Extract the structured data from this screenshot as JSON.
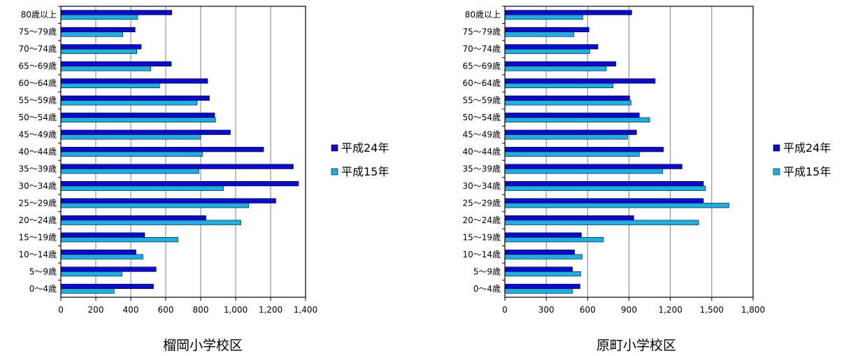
{
  "colors": {
    "series1": "#0a0ad2",
    "series2": "#1ab0e6",
    "grid": "#808080",
    "axis": "#000000"
  },
  "chart_data": [
    {
      "type": "bar",
      "orientation": "horizontal",
      "title": "榴岡小学校区",
      "categories": [
        "80歳以上",
        "75～79歳",
        "70～74歳",
        "65～69歳",
        "60～64歳",
        "55～59歳",
        "50～54歳",
        "45～49歳",
        "40～44歳",
        "35～39歳",
        "30～34歳",
        "25～29歳",
        "20～24歳",
        "15～19歳",
        "10～14歳",
        "5～9歳",
        "0～4歳"
      ],
      "series": [
        {
          "name": "平成24年",
          "values": [
            635,
            425,
            460,
            632,
            840,
            850,
            880,
            970,
            1160,
            1330,
            1360,
            1230,
            830,
            480,
            430,
            545,
            530
          ]
        },
        {
          "name": "平成15年",
          "values": [
            440,
            355,
            435,
            515,
            565,
            780,
            885,
            800,
            810,
            790,
            930,
            1075,
            1030,
            670,
            470,
            350,
            305
          ]
        }
      ],
      "xlim": [
        0,
        1400
      ],
      "xticks": [
        "0",
        "200",
        "400",
        "600",
        "800",
        "1,000",
        "1,200",
        "1,400"
      ],
      "grid": true,
      "legend": "right"
    },
    {
      "type": "bar",
      "orientation": "horizontal",
      "title": "原町小学校区",
      "categories": [
        "80歳以上",
        "75～79歳",
        "70～74歳",
        "65～69歳",
        "60～64歳",
        "55～59歳",
        "50～54歳",
        "45～49歳",
        "40～44歳",
        "35～39歳",
        "30～34歳",
        "25～29歳",
        "20～24歳",
        "15～19歳",
        "10～14歳",
        "5～9歳",
        "0～4歳"
      ],
      "series": [
        {
          "name": "平成24年",
          "values": [
            920,
            610,
            675,
            805,
            1090,
            905,
            975,
            955,
            1150,
            1285,
            1440,
            1440,
            935,
            555,
            505,
            490,
            545
          ]
        },
        {
          "name": "平成15年",
          "values": [
            565,
            500,
            615,
            735,
            785,
            915,
            1050,
            890,
            975,
            1145,
            1455,
            1625,
            1405,
            715,
            560,
            550,
            490
          ]
        }
      ],
      "xlim": [
        0,
        1800
      ],
      "xticks": [
        "0",
        "300",
        "600",
        "900",
        "1,200",
        "1,500",
        "1,800"
      ],
      "grid": true,
      "legend": "right"
    }
  ]
}
